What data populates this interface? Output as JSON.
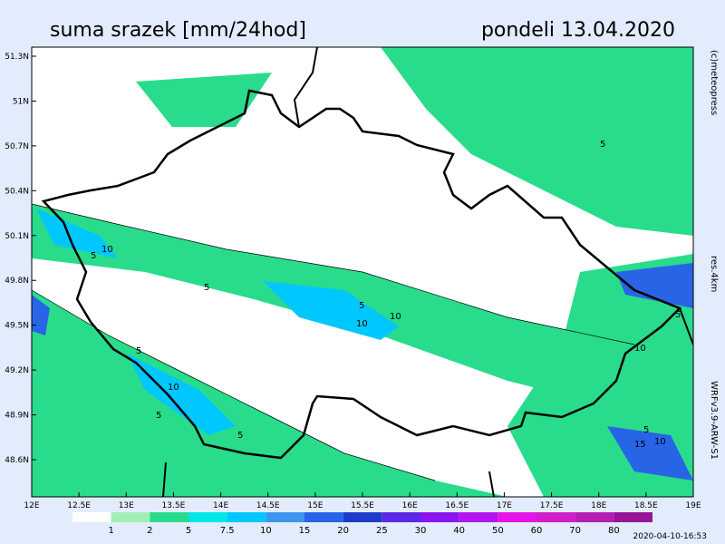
{
  "header": {
    "title": "suma srazek [mm/24hod]",
    "date": "pondeli 13.04.2020"
  },
  "map": {
    "lat_labels": [
      "51.3N",
      "51N",
      "50.7N",
      "50.4N",
      "50.1N",
      "49.8N",
      "49.5N",
      "49.2N",
      "48.9N",
      "48.6N"
    ],
    "lon_labels": [
      "12E",
      "12.5E",
      "13E",
      "13.5E",
      "14E",
      "14.5E",
      "15E",
      "15.5E",
      "16E",
      "16.5E",
      "17E",
      "17.5E",
      "18E",
      "18.5E",
      "19E"
    ],
    "contour_labels": [
      10,
      5,
      5,
      5,
      10,
      5,
      10,
      5,
      10,
      5,
      5,
      5,
      10,
      5,
      15,
      10
    ]
  },
  "legend": {
    "colors": [
      "#ffffff",
      "#a0f0b4",
      "#28dc8c",
      "#00e6e6",
      "#00c8ff",
      "#3c96f0",
      "#2864e6",
      "#1e3cc8",
      "#5a28e6",
      "#8c14f0",
      "#b414f0",
      "#e614e6",
      "#d21ec8",
      "#b41eb4",
      "#961496"
    ],
    "labels": [
      "1",
      "2",
      "5",
      "7.5",
      "10",
      "15",
      "20",
      "25",
      "30",
      "40",
      "50",
      "60",
      "70",
      "80"
    ]
  },
  "side": {
    "copyright": "(c)meteopress",
    "resolution": "res.4km",
    "model": "WRFv3.9-ARW-S1"
  },
  "timestamp": "2020-04-10-16:53"
}
